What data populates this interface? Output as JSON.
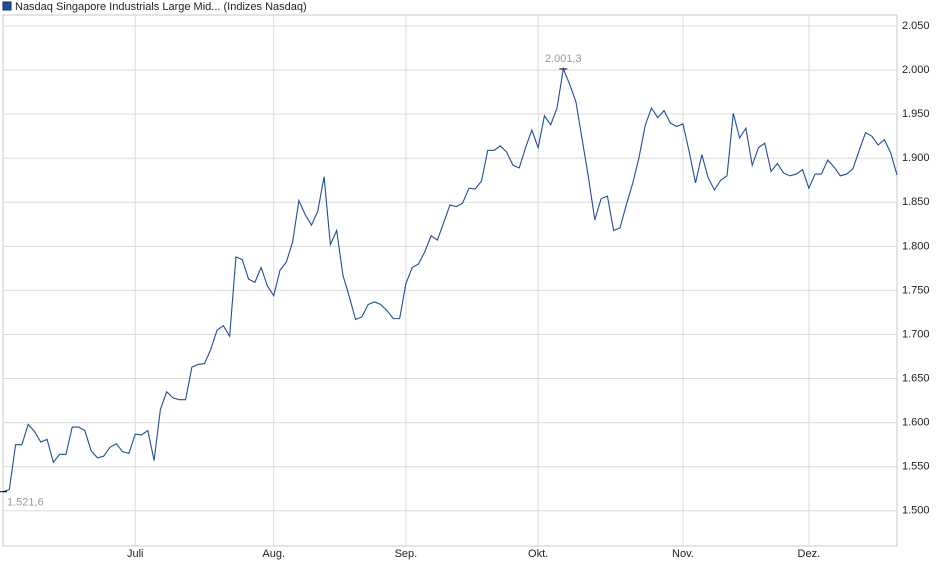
{
  "chart_data": {
    "type": "line",
    "series": [
      {
        "name": "Nasdaq Singapore Industrials Large Mid... (Indizes Nasdaq)",
        "color": "#1f4e9c",
        "values": [
          1521.6,
          1524,
          1575,
          1575,
          1598,
          1590,
          1578,
          1581,
          1555,
          1564,
          1564,
          1595,
          1595,
          1591,
          1568,
          1560,
          1562,
          1572,
          1576,
          1567,
          1565,
          1587,
          1586,
          1591,
          1557,
          1615,
          1635,
          1628,
          1626,
          1626,
          1663,
          1666,
          1667,
          1683,
          1705,
          1710,
          1698,
          1788,
          1785,
          1763,
          1759,
          1776,
          1755,
          1744,
          1773,
          1782,
          1805,
          1852,
          1836,
          1824,
          1840,
          1879,
          1802,
          1818,
          1767,
          1743,
          1717,
          1720,
          1734,
          1737,
          1734,
          1727,
          1718,
          1718,
          1758,
          1776,
          1780,
          1794,
          1812,
          1807,
          1827,
          1847,
          1845,
          1849,
          1866,
          1865,
          1874,
          1909,
          1909,
          1914,
          1907,
          1892,
          1889,
          1912,
          1932,
          1912,
          1948,
          1938,
          1957,
          2001.3,
          1984,
          1964,
          1921,
          1878,
          1830,
          1854,
          1857,
          1818,
          1821,
          1847,
          1871,
          1900,
          1937,
          1957,
          1946,
          1954,
          1940,
          1936,
          1939,
          1907,
          1872,
          1904,
          1878,
          1864,
          1875,
          1880,
          1951,
          1923,
          1934,
          1892,
          1912,
          1917,
          1885,
          1894,
          1883,
          1880,
          1882,
          1887,
          1866,
          1882,
          1882,
          1898,
          1890,
          1880,
          1882,
          1888,
          1909,
          1929,
          1925,
          1915,
          1921,
          1906,
          1881
        ]
      }
    ],
    "categories": [
      null,
      null,
      null,
      null,
      null,
      null,
      null,
      null,
      null,
      null,
      null,
      null,
      null,
      null,
      null,
      null,
      null,
      null,
      null,
      null,
      null,
      "Juli",
      null,
      null,
      null,
      null,
      null,
      null,
      null,
      null,
      null,
      null,
      null,
      null,
      null,
      null,
      null,
      null,
      null,
      null,
      null,
      null,
      null,
      "Aug.",
      null,
      null,
      null,
      null,
      null,
      null,
      null,
      null,
      null,
      null,
      null,
      null,
      null,
      null,
      null,
      null,
      null,
      null,
      null,
      null,
      "Sep.",
      null,
      null,
      null,
      null,
      null,
      null,
      null,
      null,
      null,
      null,
      null,
      null,
      null,
      null,
      null,
      null,
      null,
      null,
      null,
      null,
      "Okt.",
      null,
      null,
      null,
      null,
      null,
      null,
      null,
      null,
      null,
      null,
      null,
      null,
      null,
      null,
      null,
      null,
      null,
      null,
      null,
      null,
      null,
      null,
      "Nov.",
      null,
      null,
      null,
      null,
      null,
      null,
      null,
      null,
      null,
      null,
      null,
      null,
      null,
      null,
      null,
      null,
      null,
      null,
      null,
      "Dez.",
      null,
      null,
      null,
      null,
      null,
      null,
      null,
      null,
      null,
      null,
      null,
      null,
      null,
      null
    ],
    "ylim": [
      1460,
      2062.5
    ],
    "yticks": [
      {
        "value": 1500,
        "label": "1.500"
      },
      {
        "value": 1550,
        "label": "1.550"
      },
      {
        "value": 1600,
        "label": "1.600"
      },
      {
        "value": 1650,
        "label": "1.650"
      },
      {
        "value": 1700,
        "label": "1.700"
      },
      {
        "value": 1750,
        "label": "1.750"
      },
      {
        "value": 1800,
        "label": "1.800"
      },
      {
        "value": 1850,
        "label": "1.850"
      },
      {
        "value": 1900,
        "label": "1.900"
      },
      {
        "value": 1950,
        "label": "1.950"
      },
      {
        "value": 2000,
        "label": "2.000"
      },
      {
        "value": 2050,
        "label": "2.050"
      }
    ],
    "annotations": [
      {
        "text": "2.001,3",
        "value": 2001.3
      },
      {
        "text": "1.521,6",
        "value": 1521.6
      }
    ],
    "grid": true
  }
}
